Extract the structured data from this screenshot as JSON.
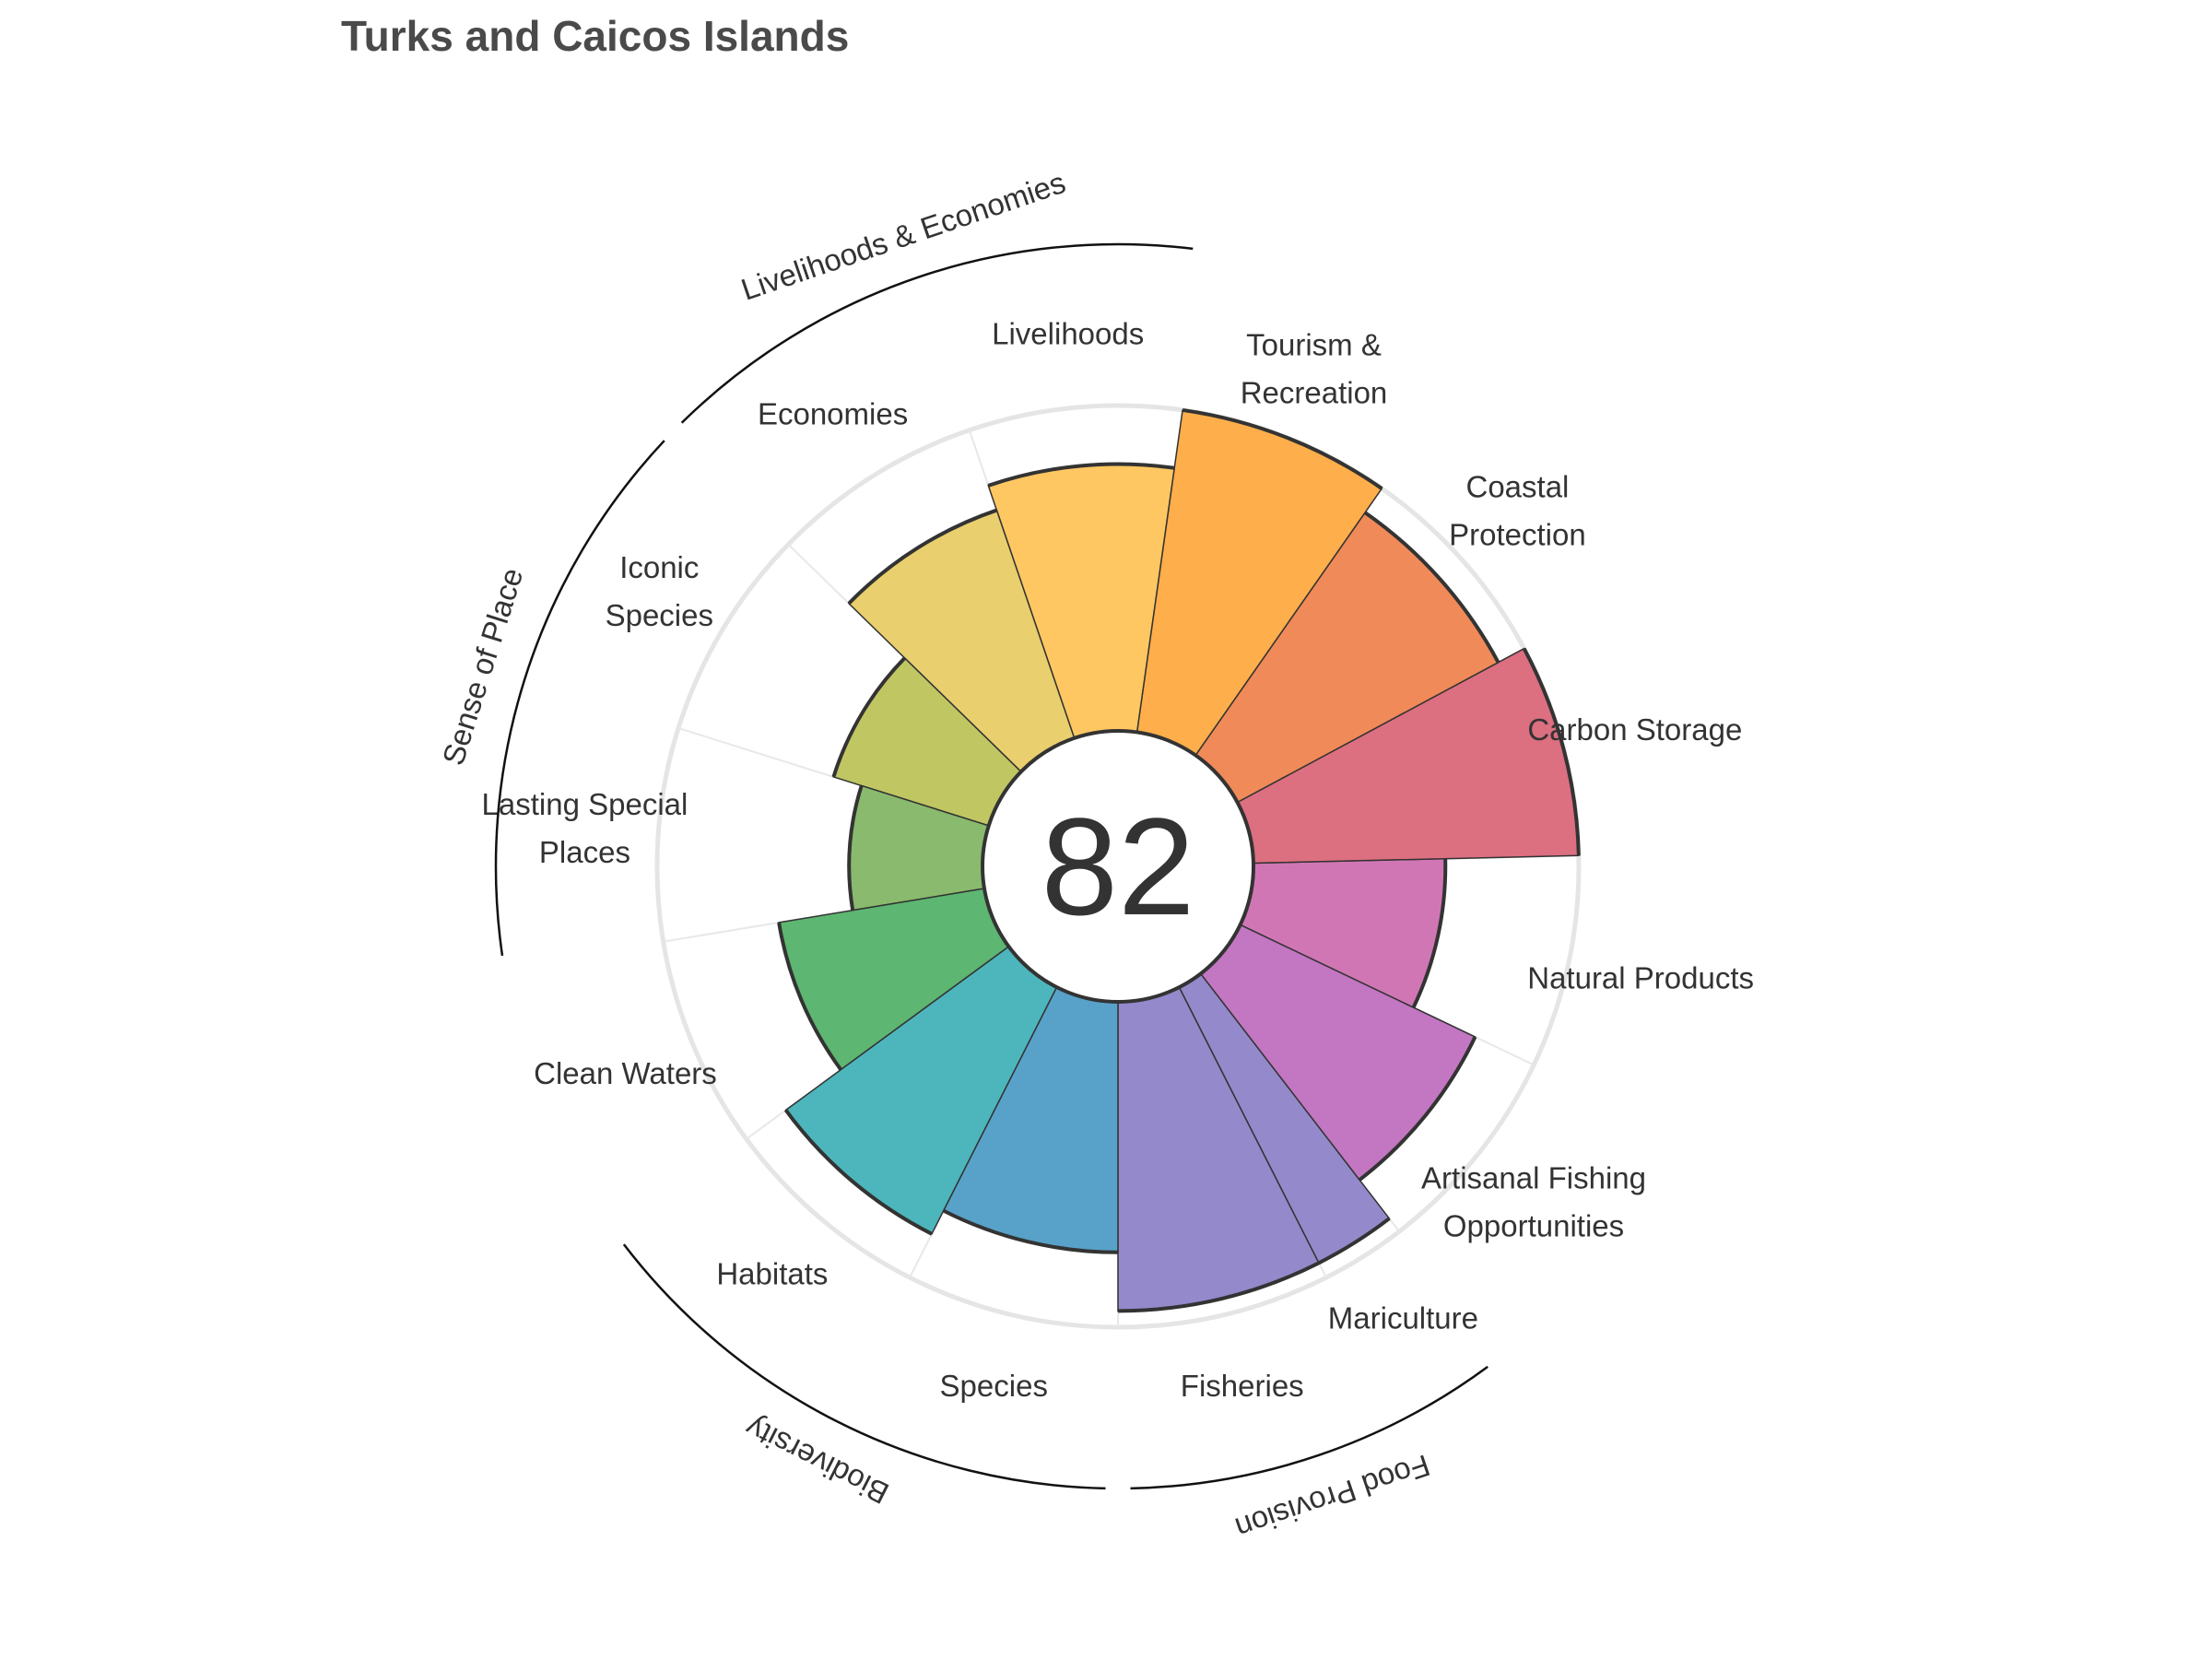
{
  "title": "Turks and Caicos Islands",
  "chart_data": {
    "type": "rose",
    "title": "Turks and Caicos Islands",
    "center_score": "82",
    "max_value": 100,
    "petals": [
      {
        "label": [
          "Fisheries"
        ],
        "value": 95,
        "weight": 1,
        "color": "#9489cb"
      },
      {
        "label": [
          "Mariculture"
        ],
        "value": 95,
        "weight": 0.4,
        "color": "#9489cb"
      },
      {
        "label": [
          "Artisanal Fishing",
          "Opportunities"
        ],
        "value": 80,
        "weight": 1,
        "color": "#c376c2"
      },
      {
        "label": [
          "Natural Products"
        ],
        "value": 59,
        "weight": 1,
        "color": "#d176b5"
      },
      {
        "label": [
          "Carbon Storage"
        ],
        "value": 100,
        "weight": 1,
        "color": "#dc6f80"
      },
      {
        "label": [
          "Coastal",
          "Protection"
        ],
        "value": 91,
        "weight": 1,
        "color": "#f08a58"
      },
      {
        "label": [
          "Tourism &",
          "Recreation"
        ],
        "value": 100,
        "weight": 1,
        "color": "#feae4a"
      },
      {
        "label": [
          "Livelihoods"
        ],
        "value": 82,
        "weight": 1,
        "color": "#fec762"
      },
      {
        "label": [
          "Economies"
        ],
        "value": 74,
        "weight": 1,
        "color": "#e9cf6e"
      },
      {
        "label": [
          "Iconic",
          "Species"
        ],
        "value": 50,
        "weight": 1,
        "color": "#c0c662"
      },
      {
        "label": [
          "Lasting Special",
          "Places"
        ],
        "value": 41,
        "weight": 1,
        "color": "#89ba6d"
      },
      {
        "label": [
          "Clean Waters"
        ],
        "value": 64,
        "weight": 1,
        "color": "#5db671"
      },
      {
        "label": [
          "Habitats"
        ],
        "value": 85,
        "weight": 1,
        "color": "#4db6bc"
      },
      {
        "label": [
          "Species"
        ],
        "value": 77,
        "weight": 1,
        "color": "#58a2c9"
      }
    ],
    "groups": [
      {
        "label": "Food Provision"
      },
      {
        "label": "Biodiversity"
      },
      {
        "label": "Sense of Place"
      },
      {
        "label": "Livelihoods & Economies"
      }
    ]
  }
}
